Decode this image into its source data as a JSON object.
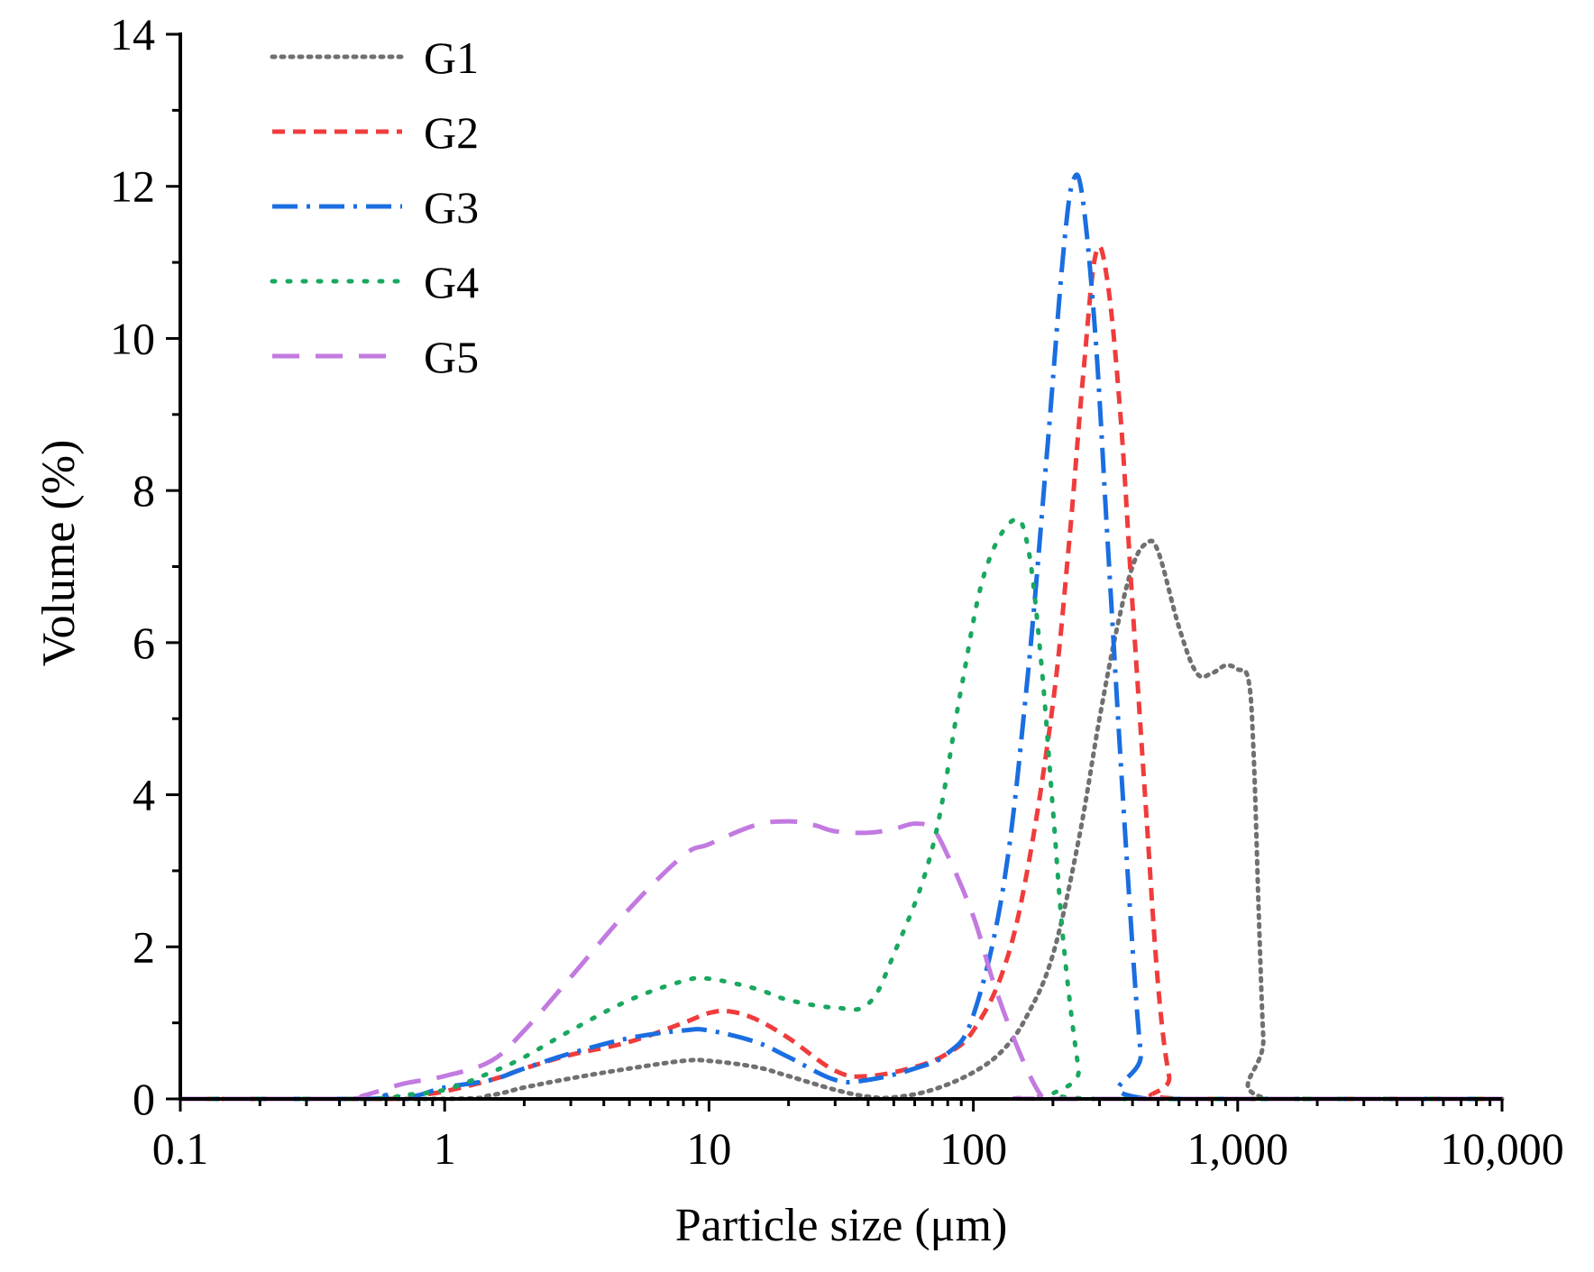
{
  "chart_data": {
    "type": "line",
    "x_scale": "log",
    "xlabel": "Particle size (μm)",
    "ylabel": "Volume  (%)",
    "xlim": [
      0.1,
      10000
    ],
    "ylim": [
      0,
      14
    ],
    "x_ticks": [
      {
        "value": 0.1,
        "label": "0.1"
      },
      {
        "value": 1,
        "label": "1"
      },
      {
        "value": 10,
        "label": "10"
      },
      {
        "value": 100,
        "label": "100"
      },
      {
        "value": 1000,
        "label": "1,000"
      },
      {
        "value": 10000,
        "label": "10,000"
      }
    ],
    "y_ticks": [
      {
        "value": 0,
        "label": "0"
      },
      {
        "value": 2,
        "label": "2"
      },
      {
        "value": 4,
        "label": "4"
      },
      {
        "value": 6,
        "label": "6"
      },
      {
        "value": 8,
        "label": "8"
      },
      {
        "value": 10,
        "label": "10"
      },
      {
        "value": 12,
        "label": "12"
      },
      {
        "value": 14,
        "label": "14"
      }
    ],
    "grid": false,
    "legend_position": "top-left",
    "series": [
      {
        "name": "G1",
        "color": "#707070",
        "dash": "dotted",
        "points": [
          [
            0.1,
            0
          ],
          [
            1,
            0
          ],
          [
            1.5,
            0.05
          ],
          [
            2,
            0.15
          ],
          [
            3,
            0.27
          ],
          [
            5,
            0.4
          ],
          [
            8,
            0.5
          ],
          [
            10,
            0.5
          ],
          [
            15,
            0.42
          ],
          [
            20,
            0.3
          ],
          [
            30,
            0.12
          ],
          [
            40,
            0.03
          ],
          [
            50,
            0.02
          ],
          [
            70,
            0.12
          ],
          [
            100,
            0.35
          ],
          [
            130,
            0.65
          ],
          [
            160,
            1.1
          ],
          [
            200,
            1.9
          ],
          [
            250,
            3.4
          ],
          [
            300,
            5
          ],
          [
            350,
            6.2
          ],
          [
            400,
            7
          ],
          [
            450,
            7.3
          ],
          [
            500,
            7.2
          ],
          [
            600,
            6.2
          ],
          [
            700,
            5.6
          ],
          [
            800,
            5.6
          ],
          [
            900,
            5.7
          ],
          [
            1000,
            5.65
          ],
          [
            1100,
            5.5
          ],
          [
            1150,
            4.5
          ],
          [
            1200,
            2.5
          ],
          [
            1250,
            0.8
          ],
          [
            1300,
            0
          ],
          [
            10000,
            0
          ]
        ]
      },
      {
        "name": "G2",
        "color": "#f03c3c",
        "dash": "dashed",
        "points": [
          [
            0.1,
            0
          ],
          [
            0.6,
            0
          ],
          [
            0.8,
            0.05
          ],
          [
            1,
            0.1
          ],
          [
            1.5,
            0.25
          ],
          [
            2,
            0.4
          ],
          [
            3,
            0.58
          ],
          [
            5,
            0.75
          ],
          [
            8,
            1
          ],
          [
            10,
            1.13
          ],
          [
            12,
            1.15
          ],
          [
            15,
            1.05
          ],
          [
            20,
            0.8
          ],
          [
            30,
            0.37
          ],
          [
            40,
            0.3
          ],
          [
            60,
            0.42
          ],
          [
            80,
            0.6
          ],
          [
            100,
            0.9
          ],
          [
            130,
            1.7
          ],
          [
            160,
            3
          ],
          [
            200,
            5.2
          ],
          [
            230,
            7.3
          ],
          [
            260,
            9.5
          ],
          [
            290,
            11.1
          ],
          [
            320,
            10.8
          ],
          [
            360,
            9
          ],
          [
            400,
            6.5
          ],
          [
            450,
            3.8
          ],
          [
            500,
            1.5
          ],
          [
            550,
            0.3
          ],
          [
            600,
            0
          ],
          [
            10000,
            0
          ]
        ]
      },
      {
        "name": "G3",
        "color": "#1a6ee0",
        "dash": "dashdot",
        "points": [
          [
            0.1,
            0
          ],
          [
            0.5,
            0
          ],
          [
            0.6,
            0.05
          ],
          [
            0.7,
            0.02
          ],
          [
            0.8,
            0.05
          ],
          [
            1,
            0.15
          ],
          [
            1.5,
            0.25
          ],
          [
            2,
            0.4
          ],
          [
            3,
            0.6
          ],
          [
            5,
            0.8
          ],
          [
            8,
            0.9
          ],
          [
            10,
            0.9
          ],
          [
            15,
            0.75
          ],
          [
            20,
            0.55
          ],
          [
            30,
            0.25
          ],
          [
            40,
            0.25
          ],
          [
            60,
            0.4
          ],
          [
            80,
            0.6
          ],
          [
            100,
            1.1
          ],
          [
            130,
            2.8
          ],
          [
            160,
            5.5
          ],
          [
            190,
            8.5
          ],
          [
            220,
            11.2
          ],
          [
            240,
            12.1
          ],
          [
            260,
            11.8
          ],
          [
            290,
            10
          ],
          [
            320,
            7.5
          ],
          [
            360,
            4.5
          ],
          [
            400,
            2
          ],
          [
            430,
            0.6
          ],
          [
            460,
            0
          ],
          [
            10000,
            0
          ]
        ]
      },
      {
        "name": "G4",
        "color": "#1aa860",
        "dash": "dotted-sparse",
        "points": [
          [
            0.1,
            0
          ],
          [
            0.5,
            0
          ],
          [
            0.7,
            0.05
          ],
          [
            1,
            0.12
          ],
          [
            1.5,
            0.35
          ],
          [
            2,
            0.55
          ],
          [
            3,
            0.9
          ],
          [
            5,
            1.3
          ],
          [
            8,
            1.55
          ],
          [
            10,
            1.58
          ],
          [
            15,
            1.45
          ],
          [
            20,
            1.3
          ],
          [
            30,
            1.2
          ],
          [
            40,
            1.25
          ],
          [
            50,
            1.9
          ],
          [
            70,
            3.3
          ],
          [
            90,
            5.4
          ],
          [
            110,
            6.9
          ],
          [
            140,
            7.6
          ],
          [
            160,
            7.3
          ],
          [
            180,
            5.8
          ],
          [
            200,
            3.8
          ],
          [
            220,
            2
          ],
          [
            250,
            0.4
          ],
          [
            270,
            0
          ],
          [
            10000,
            0
          ]
        ]
      },
      {
        "name": "G5",
        "color": "#c27ae0",
        "dash": "long-dash",
        "points": [
          [
            0.1,
            0
          ],
          [
            0.4,
            0
          ],
          [
            0.5,
            0.05
          ],
          [
            0.7,
            0.2
          ],
          [
            1,
            0.3
          ],
          [
            1.5,
            0.5
          ],
          [
            2,
            0.9
          ],
          [
            3,
            1.6
          ],
          [
            5,
            2.5
          ],
          [
            8,
            3.2
          ],
          [
            10,
            3.35
          ],
          [
            15,
            3.6
          ],
          [
            20,
            3.65
          ],
          [
            25,
            3.6
          ],
          [
            30,
            3.52
          ],
          [
            40,
            3.5
          ],
          [
            50,
            3.55
          ],
          [
            60,
            3.62
          ],
          [
            70,
            3.55
          ],
          [
            80,
            3.2
          ],
          [
            100,
            2.4
          ],
          [
            120,
            1.5
          ],
          [
            150,
            0.6
          ],
          [
            180,
            0.05
          ],
          [
            200,
            0
          ],
          [
            10000,
            0
          ]
        ]
      }
    ]
  }
}
